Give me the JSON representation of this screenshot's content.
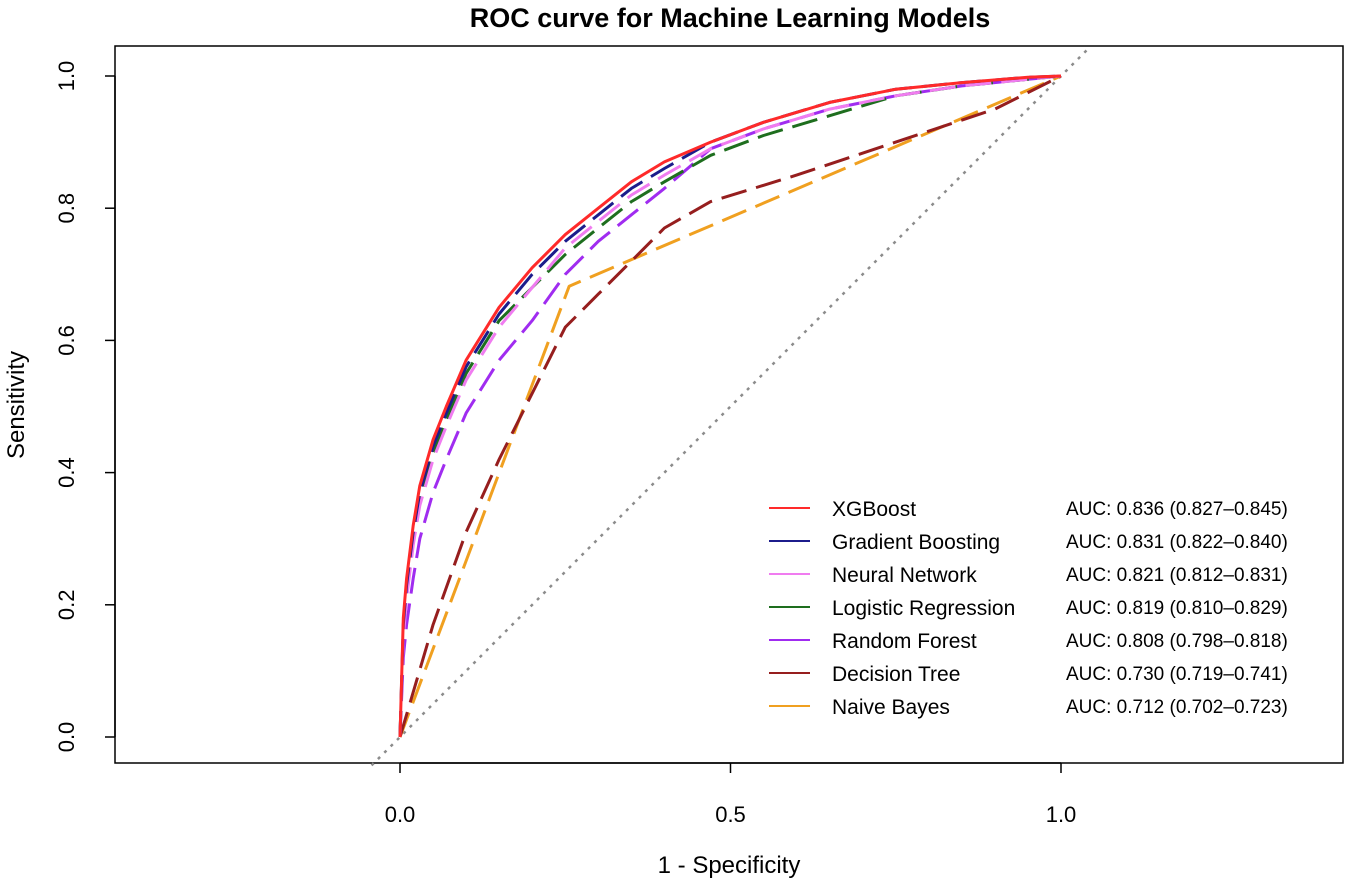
{
  "chart_data": {
    "type": "line",
    "title": "ROC curve for Machine Learning Models",
    "xlabel": "1 - Specificity",
    "ylabel": "Sensitivity",
    "xlim": [
      -0.43,
      1.43
    ],
    "ylim": [
      -0.04,
      1.04
    ],
    "xticks": [
      0.0,
      0.5,
      1.0
    ],
    "xtick_labels": [
      "0.0",
      "0.5",
      "1.0"
    ],
    "yticks": [
      0.0,
      0.2,
      0.4,
      0.6,
      0.8,
      1.0
    ],
    "ytick_labels": [
      "0.0",
      "0.2",
      "0.4",
      "0.6",
      "0.8",
      "1.0"
    ],
    "reference_line": {
      "from": [
        0,
        0
      ],
      "to": [
        1,
        1
      ],
      "color": "#8c8c8c",
      "style": "dotted"
    },
    "legend_position": "bottom-right",
    "series": [
      {
        "name": "XGBoost",
        "auc": "AUC: 0.836 (0.827–0.845)",
        "color": "#ff2a2a",
        "dash": "solid",
        "x": [
          0,
          0.005,
          0.01,
          0.02,
          0.03,
          0.05,
          0.07,
          0.1,
          0.15,
          0.2,
          0.25,
          0.3,
          0.35,
          0.4,
          0.47,
          0.55,
          0.65,
          0.75,
          0.85,
          0.95,
          1.0
        ],
        "y": [
          0,
          0.18,
          0.24,
          0.32,
          0.38,
          0.45,
          0.5,
          0.57,
          0.65,
          0.71,
          0.76,
          0.8,
          0.84,
          0.87,
          0.9,
          0.93,
          0.96,
          0.98,
          0.99,
          0.998,
          1.0
        ]
      },
      {
        "name": "Gradient Boosting",
        "auc": "AUC: 0.831 (0.822–0.840)",
        "color": "#1c1c8c",
        "dash": "long",
        "x": [
          0,
          0.005,
          0.01,
          0.02,
          0.03,
          0.05,
          0.07,
          0.1,
          0.15,
          0.2,
          0.25,
          0.3,
          0.35,
          0.4,
          0.47,
          0.55,
          0.65,
          0.75,
          0.85,
          0.95,
          1.0
        ],
        "y": [
          0,
          0.17,
          0.23,
          0.31,
          0.37,
          0.44,
          0.49,
          0.56,
          0.64,
          0.7,
          0.75,
          0.79,
          0.83,
          0.86,
          0.9,
          0.93,
          0.96,
          0.98,
          0.99,
          0.998,
          1.0
        ]
      },
      {
        "name": "Neural Network",
        "auc": "AUC: 0.821 (0.812–0.831)",
        "color": "#f07cf0",
        "dash": "long",
        "x": [
          0,
          0.005,
          0.01,
          0.02,
          0.03,
          0.05,
          0.07,
          0.1,
          0.15,
          0.2,
          0.25,
          0.3,
          0.35,
          0.4,
          0.47,
          0.55,
          0.65,
          0.75,
          0.85,
          0.95,
          1.0
        ],
        "y": [
          0,
          0.15,
          0.21,
          0.29,
          0.35,
          0.42,
          0.47,
          0.54,
          0.62,
          0.68,
          0.74,
          0.78,
          0.82,
          0.85,
          0.89,
          0.92,
          0.95,
          0.97,
          0.985,
          0.995,
          1.0
        ]
      },
      {
        "name": "Logistic Regression",
        "auc": "AUC: 0.819 (0.810–0.829)",
        "color": "#1e6e1e",
        "dash": "long",
        "x": [
          0,
          0.005,
          0.01,
          0.02,
          0.03,
          0.05,
          0.07,
          0.1,
          0.15,
          0.2,
          0.25,
          0.3,
          0.35,
          0.4,
          0.47,
          0.55,
          0.65,
          0.75,
          0.85,
          0.95,
          1.0
        ],
        "y": [
          0,
          0.16,
          0.22,
          0.3,
          0.36,
          0.43,
          0.48,
          0.55,
          0.63,
          0.68,
          0.73,
          0.77,
          0.81,
          0.84,
          0.88,
          0.91,
          0.94,
          0.97,
          0.985,
          0.995,
          1.0
        ]
      },
      {
        "name": "Random Forest",
        "auc": "AUC: 0.808 (0.798–0.818)",
        "color": "#a02cf0",
        "dash": "long",
        "x": [
          0,
          0.005,
          0.01,
          0.02,
          0.03,
          0.05,
          0.07,
          0.1,
          0.15,
          0.2,
          0.25,
          0.3,
          0.35,
          0.4,
          0.47,
          0.55,
          0.65,
          0.75,
          0.85,
          0.95,
          1.0
        ],
        "y": [
          0,
          0.12,
          0.17,
          0.24,
          0.3,
          0.37,
          0.42,
          0.49,
          0.57,
          0.63,
          0.7,
          0.75,
          0.79,
          0.83,
          0.89,
          0.92,
          0.95,
          0.97,
          0.985,
          0.995,
          1.0
        ]
      },
      {
        "name": "Decision Tree",
        "auc": "AUC: 0.730 (0.719–0.741)",
        "color": "#961e1e",
        "dash": "long",
        "x": [
          0,
          0.05,
          0.1,
          0.15,
          0.2,
          0.25,
          0.3,
          0.35,
          0.4,
          0.47,
          0.6,
          0.75,
          0.9,
          1.0
        ],
        "y": [
          0,
          0.17,
          0.31,
          0.42,
          0.52,
          0.62,
          0.67,
          0.72,
          0.77,
          0.81,
          0.85,
          0.9,
          0.95,
          1.0
        ]
      },
      {
        "name": "Naive Bayes",
        "auc": "AUC: 0.712 (0.702–0.723)",
        "color": "#f0a020",
        "dash": "long",
        "x": [
          0,
          0.256,
          1.0
        ],
        "y": [
          0,
          0.682,
          1.0
        ]
      }
    ]
  }
}
